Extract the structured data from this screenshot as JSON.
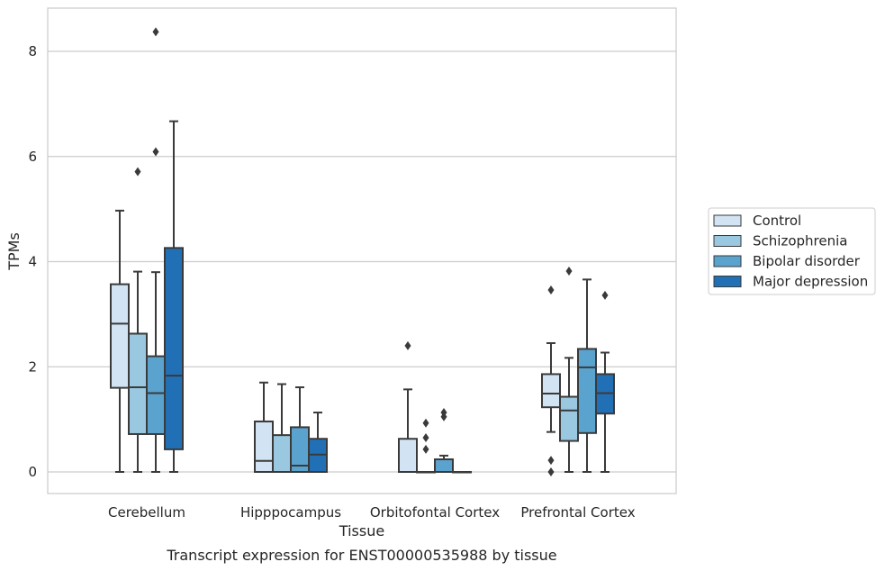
{
  "caption": "Transcript expression for ENST00000535988 by tissue",
  "chart_data": {
    "type": "boxplot",
    "xlabel": "Tissue",
    "ylabel": "TPMs",
    "ylim": [
      -0.4,
      8.8
    ],
    "yticks": [
      0,
      2,
      4,
      6,
      8
    ],
    "grid": "horizontal",
    "legend_position": "right",
    "categories": [
      "Cerebellum",
      "Hipppocampus",
      "Orbitofontal Cortex",
      "Prefrontal Cortex"
    ],
    "series": [
      {
        "name": "Control",
        "color": "#d2e3f3",
        "boxes": [
          {
            "whislo": 0.0,
            "q1": 1.6,
            "med": 2.82,
            "q3": 3.57,
            "whishi": 4.97,
            "fliers": []
          },
          {
            "whislo": 0.0,
            "q1": 0.0,
            "med": 0.21,
            "q3": 0.96,
            "whishi": 1.7,
            "fliers": []
          },
          {
            "whislo": 0.0,
            "q1": 0.0,
            "med": 0.0,
            "q3": 0.63,
            "whishi": 1.57,
            "fliers": [
              2.4
            ]
          },
          {
            "whislo": 0.76,
            "q1": 1.23,
            "med": 1.49,
            "q3": 1.86,
            "whishi": 2.45,
            "fliers": [
              3.46,
              0.22,
              0.0
            ]
          }
        ]
      },
      {
        "name": "Schizophrenia",
        "color": "#9ac8e0",
        "boxes": [
          {
            "whislo": 0.0,
            "q1": 0.72,
            "med": 1.61,
            "q3": 2.63,
            "whishi": 3.81,
            "fliers": [
              5.71
            ]
          },
          {
            "whislo": 0.0,
            "q1": 0.0,
            "med": 0.0,
            "q3": 0.7,
            "whishi": 1.67,
            "fliers": []
          },
          {
            "whislo": 0.0,
            "q1": 0.0,
            "med": 0.0,
            "q3": 0.0,
            "whishi": 0.0,
            "fliers": [
              0.93,
              0.65,
              0.43
            ]
          },
          {
            "whislo": 0.0,
            "q1": 0.59,
            "med": 1.17,
            "q3": 1.43,
            "whishi": 2.17,
            "fliers": [
              3.82
            ]
          }
        ]
      },
      {
        "name": "Bipolar disorder",
        "color": "#5ba3cf",
        "boxes": [
          {
            "whislo": 0.0,
            "q1": 0.72,
            "med": 1.5,
            "q3": 2.2,
            "whishi": 3.8,
            "fliers": [
              8.37,
              6.09
            ]
          },
          {
            "whislo": 0.0,
            "q1": 0.0,
            "med": 0.12,
            "q3": 0.85,
            "whishi": 1.61,
            "fliers": []
          },
          {
            "whislo": 0.0,
            "q1": 0.0,
            "med": 0.0,
            "q3": 0.24,
            "whishi": 0.31,
            "fliers": [
              1.13,
              1.05
            ]
          },
          {
            "whislo": 0.0,
            "q1": 0.74,
            "med": 1.99,
            "q3": 2.34,
            "whishi": 3.66,
            "fliers": []
          }
        ]
      },
      {
        "name": "Major depression",
        "color": "#2170b5",
        "boxes": [
          {
            "whislo": 0.0,
            "q1": 0.43,
            "med": 1.83,
            "q3": 4.26,
            "whishi": 6.67,
            "fliers": []
          },
          {
            "whislo": 0.0,
            "q1": 0.0,
            "med": 0.33,
            "q3": 0.63,
            "whishi": 1.13,
            "fliers": []
          },
          {
            "whislo": 0.0,
            "q1": 0.0,
            "med": 0.0,
            "q3": 0.0,
            "whishi": 0.0,
            "fliers": []
          },
          {
            "whislo": 0.0,
            "q1": 1.11,
            "med": 1.5,
            "q3": 1.86,
            "whishi": 2.27,
            "fliers": [
              3.36
            ]
          }
        ]
      }
    ]
  }
}
